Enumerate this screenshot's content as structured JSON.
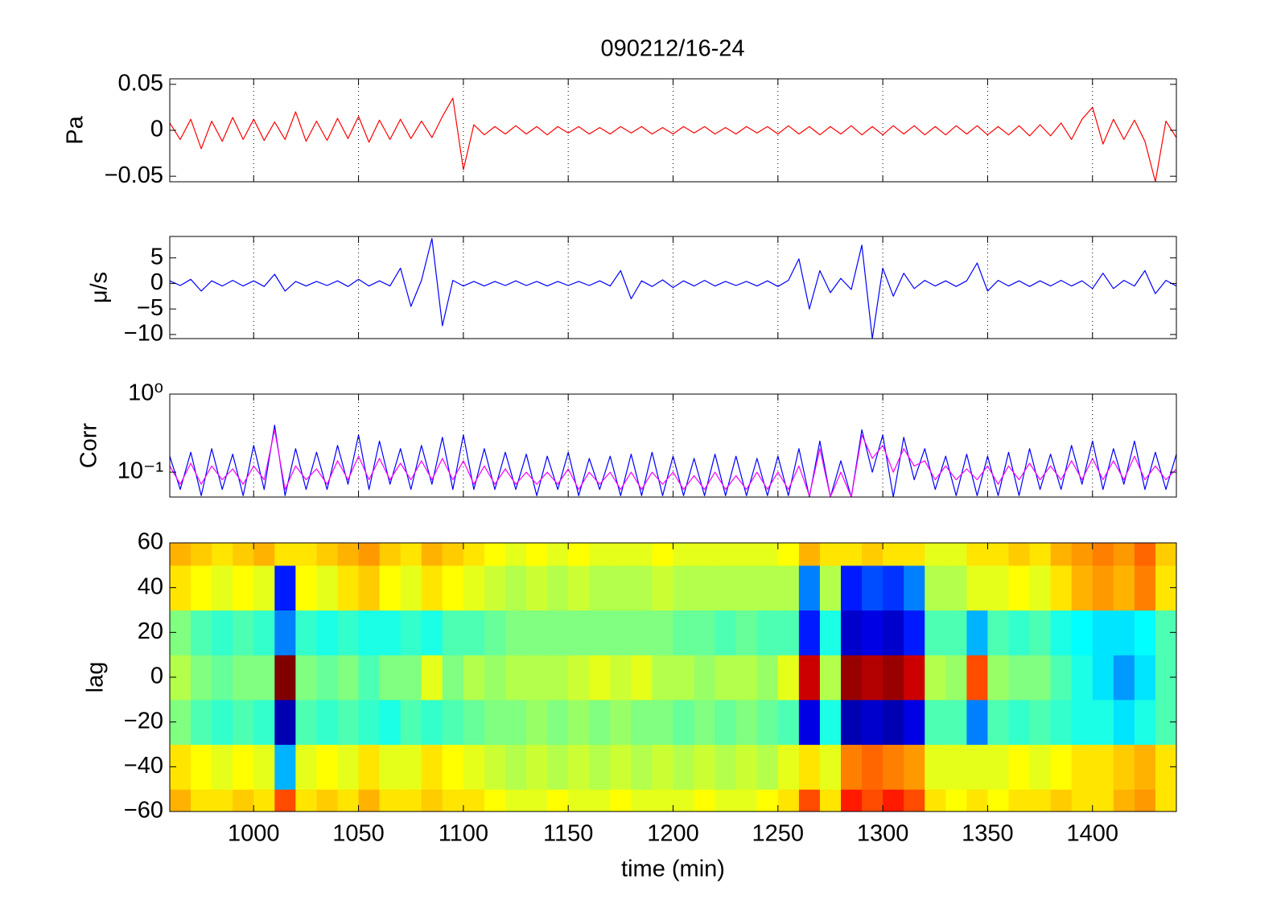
{
  "chart_data": [
    {
      "type": "line",
      "title": "090212/16-24",
      "ylabel": "Pa",
      "color": "#ff0000",
      "grid": true,
      "xlim": [
        960,
        1440
      ],
      "xticks": [
        1000,
        1050,
        1100,
        1150,
        1200,
        1250,
        1300,
        1350,
        1400
      ],
      "ylim": [
        -0.056,
        0.056
      ],
      "yticks": [
        {
          "value": -0.05,
          "label": "−0.05"
        },
        0,
        0.05
      ],
      "x": [
        960,
        965,
        970,
        975,
        980,
        985,
        990,
        995,
        1000,
        1005,
        1010,
        1015,
        1020,
        1025,
        1030,
        1035,
        1040,
        1045,
        1050,
        1055,
        1060,
        1065,
        1070,
        1075,
        1080,
        1085,
        1090,
        1095,
        1100,
        1105,
        1110,
        1115,
        1120,
        1125,
        1130,
        1135,
        1140,
        1145,
        1150,
        1155,
        1160,
        1165,
        1170,
        1175,
        1180,
        1185,
        1190,
        1195,
        1200,
        1205,
        1210,
        1215,
        1220,
        1225,
        1230,
        1235,
        1240,
        1245,
        1250,
        1255,
        1260,
        1265,
        1270,
        1275,
        1280,
        1285,
        1290,
        1295,
        1300,
        1305,
        1310,
        1315,
        1320,
        1325,
        1330,
        1335,
        1340,
        1345,
        1350,
        1355,
        1360,
        1365,
        1370,
        1375,
        1380,
        1385,
        1390,
        1395,
        1400,
        1405,
        1410,
        1415,
        1420,
        1425,
        1430,
        1435,
        1440
      ],
      "values": [
        0.008,
        -0.01,
        0.012,
        -0.02,
        0.01,
        -0.012,
        0.014,
        -0.01,
        0.012,
        -0.011,
        0.009,
        -0.01,
        0.02,
        -0.012,
        0.01,
        -0.011,
        0.013,
        -0.009,
        0.015,
        -0.013,
        0.011,
        -0.01,
        0.012,
        -0.009,
        0.01,
        -0.008,
        0.015,
        0.035,
        -0.043,
        0.006,
        -0.005,
        0.004,
        -0.004,
        0.005,
        -0.004,
        0.004,
        -0.005,
        0.004,
        -0.003,
        0.004,
        -0.004,
        0.003,
        -0.004,
        0.004,
        -0.003,
        0.004,
        -0.004,
        0.003,
        -0.004,
        0.004,
        -0.003,
        0.004,
        -0.004,
        0.003,
        -0.004,
        0.004,
        -0.003,
        0.004,
        -0.004,
        0.005,
        -0.004,
        0.004,
        -0.005,
        0.004,
        -0.004,
        0.005,
        -0.005,
        0.004,
        -0.005,
        0.005,
        -0.004,
        0.005,
        -0.005,
        0.004,
        -0.005,
        0.005,
        -0.004,
        0.005,
        -0.005,
        0.004,
        -0.005,
        0.005,
        -0.006,
        0.006,
        -0.006,
        0.008,
        -0.01,
        0.012,
        0.025,
        -0.015,
        0.012,
        -0.01,
        0.011,
        -0.012,
        -0.056,
        0.01,
        -0.008
      ]
    },
    {
      "type": "line",
      "ylabel": "μ/s",
      "color": "#0000ff",
      "grid": true,
      "xlim": [
        960,
        1440
      ],
      "xticks": [
        1000,
        1050,
        1100,
        1150,
        1200,
        1250,
        1300,
        1350,
        1400
      ],
      "ylim": [
        -10.8,
        9.2
      ],
      "yticks": [
        {
          "value": -10,
          "label": "−10"
        },
        {
          "value": -5,
          "label": "−5"
        },
        0,
        5
      ],
      "x": [
        960,
        965,
        970,
        975,
        980,
        985,
        990,
        995,
        1000,
        1005,
        1010,
        1015,
        1020,
        1025,
        1030,
        1035,
        1040,
        1045,
        1050,
        1055,
        1060,
        1065,
        1070,
        1075,
        1080,
        1085,
        1090,
        1095,
        1100,
        1105,
        1110,
        1115,
        1120,
        1125,
        1130,
        1135,
        1140,
        1145,
        1150,
        1155,
        1160,
        1165,
        1170,
        1175,
        1180,
        1185,
        1190,
        1195,
        1200,
        1205,
        1210,
        1215,
        1220,
        1225,
        1230,
        1235,
        1240,
        1245,
        1250,
        1255,
        1260,
        1265,
        1270,
        1275,
        1280,
        1285,
        1290,
        1295,
        1300,
        1305,
        1310,
        1315,
        1320,
        1325,
        1330,
        1335,
        1340,
        1345,
        1350,
        1355,
        1360,
        1365,
        1370,
        1375,
        1380,
        1385,
        1390,
        1395,
        1400,
        1405,
        1410,
        1415,
        1420,
        1425,
        1430,
        1435,
        1440
      ],
      "values": [
        0.5,
        -0.4,
        0.8,
        -1.5,
        0.5,
        -0.5,
        0.6,
        -0.5,
        0.5,
        -0.6,
        1.8,
        -1.5,
        0.4,
        -0.5,
        0.4,
        -0.4,
        0.5,
        -0.6,
        0.8,
        -0.5,
        0.5,
        -0.5,
        3,
        -4.5,
        0.6,
        8.8,
        -8.3,
        0.6,
        -0.5,
        0.4,
        -0.5,
        0.4,
        -0.4,
        0.5,
        -0.4,
        0.4,
        -0.5,
        0.4,
        -0.4,
        0.4,
        -0.4,
        0.5,
        -0.5,
        2.5,
        -3,
        0.5,
        -0.6,
        0.7,
        -0.8,
        0.5,
        -0.5,
        0.6,
        -0.5,
        0.4,
        -0.4,
        0.4,
        -0.5,
        0.5,
        -0.6,
        0.6,
        4.8,
        -5,
        2.5,
        -1.8,
        1,
        -1.2,
        7.5,
        -10.8,
        3,
        -2.5,
        2,
        -1,
        0.6,
        -0.5,
        0.5,
        -0.6,
        0.5,
        4,
        -1.5,
        0.6,
        -0.5,
        0.5,
        -0.6,
        0.5,
        -0.5,
        0.6,
        -0.5,
        0.5,
        -1,
        2,
        -1,
        0.6,
        -0.5,
        2.5,
        -2,
        0.6,
        -0.5
      ]
    },
    {
      "type": "line",
      "ylabel": "Corr",
      "yscale": "log",
      "grid": true,
      "xlim": [
        960,
        1440
      ],
      "xticks": [
        1000,
        1050,
        1100,
        1150,
        1200,
        1250,
        1300,
        1350,
        1400
      ],
      "ylim": [
        0.048,
        1
      ],
      "yticks": [
        {
          "value": 0.1,
          "label": "10⁻¹"
        },
        {
          "value": 1,
          "label": "10⁰"
        }
      ],
      "x": [
        960,
        965,
        970,
        975,
        980,
        985,
        990,
        995,
        1000,
        1005,
        1010,
        1015,
        1020,
        1025,
        1030,
        1035,
        1040,
        1045,
        1050,
        1055,
        1060,
        1065,
        1070,
        1075,
        1080,
        1085,
        1090,
        1095,
        1100,
        1105,
        1110,
        1115,
        1120,
        1125,
        1130,
        1135,
        1140,
        1145,
        1150,
        1155,
        1160,
        1165,
        1170,
        1175,
        1180,
        1185,
        1190,
        1195,
        1200,
        1205,
        1210,
        1215,
        1220,
        1225,
        1230,
        1235,
        1240,
        1245,
        1250,
        1255,
        1260,
        1265,
        1270,
        1275,
        1280,
        1285,
        1290,
        1295,
        1300,
        1305,
        1310,
        1315,
        1320,
        1325,
        1330,
        1335,
        1340,
        1345,
        1350,
        1355,
        1360,
        1365,
        1370,
        1375,
        1380,
        1385,
        1390,
        1395,
        1400,
        1405,
        1410,
        1415,
        1420,
        1425,
        1430,
        1435,
        1440
      ],
      "series": [
        {
          "color": "#0000ff",
          "values": [
            0.16,
            0.06,
            0.18,
            0.05,
            0.2,
            0.06,
            0.17,
            0.05,
            0.22,
            0.06,
            0.4,
            0.05,
            0.2,
            0.06,
            0.18,
            0.06,
            0.22,
            0.07,
            0.3,
            0.06,
            0.25,
            0.07,
            0.2,
            0.06,
            0.22,
            0.07,
            0.28,
            0.06,
            0.3,
            0.06,
            0.2,
            0.06,
            0.18,
            0.06,
            0.17,
            0.05,
            0.16,
            0.06,
            0.18,
            0.05,
            0.15,
            0.06,
            0.16,
            0.05,
            0.17,
            0.05,
            0.18,
            0.05,
            0.16,
            0.05,
            0.15,
            0.05,
            0.17,
            0.05,
            0.16,
            0.05,
            0.15,
            0.05,
            0.16,
            0.05,
            0.2,
            0.048,
            0.25,
            0.048,
            0.14,
            0.048,
            0.35,
            0.1,
            0.3,
            0.048,
            0.28,
            0.08,
            0.2,
            0.06,
            0.16,
            0.05,
            0.17,
            0.05,
            0.16,
            0.05,
            0.18,
            0.05,
            0.2,
            0.06,
            0.17,
            0.06,
            0.22,
            0.07,
            0.25,
            0.06,
            0.2,
            0.07,
            0.25,
            0.06,
            0.18,
            0.06,
            0.17
          ]
        },
        {
          "color": "#ff00ff",
          "values": [
            0.12,
            0.07,
            0.13,
            0.07,
            0.12,
            0.08,
            0.11,
            0.07,
            0.12,
            0.08,
            0.35,
            0.06,
            0.12,
            0.08,
            0.11,
            0.07,
            0.14,
            0.08,
            0.16,
            0.08,
            0.15,
            0.08,
            0.13,
            0.08,
            0.14,
            0.08,
            0.15,
            0.08,
            0.14,
            0.07,
            0.12,
            0.07,
            0.11,
            0.07,
            0.1,
            0.07,
            0.1,
            0.07,
            0.11,
            0.06,
            0.1,
            0.07,
            0.1,
            0.06,
            0.1,
            0.06,
            0.1,
            0.07,
            0.1,
            0.06,
            0.09,
            0.06,
            0.1,
            0.06,
            0.09,
            0.06,
            0.1,
            0.06,
            0.1,
            0.06,
            0.12,
            0.05,
            0.2,
            0.048,
            0.1,
            0.048,
            0.3,
            0.15,
            0.22,
            0.1,
            0.2,
            0.12,
            0.14,
            0.08,
            0.12,
            0.08,
            0.11,
            0.08,
            0.12,
            0.07,
            0.12,
            0.08,
            0.13,
            0.08,
            0.12,
            0.08,
            0.14,
            0.08,
            0.15,
            0.08,
            0.14,
            0.08,
            0.16,
            0.08,
            0.12,
            0.08,
            0.11
          ]
        }
      ]
    },
    {
      "type": "heatmap",
      "ylabel": "lag",
      "xlabel": "time (min)",
      "clim": [
        -1,
        1
      ],
      "xlim": [
        960,
        1440
      ],
      "xticks": [
        1000,
        1050,
        1100,
        1150,
        1200,
        1250,
        1300,
        1350,
        1400
      ],
      "ylim": [
        -60,
        60
      ],
      "yticks": [
        {
          "value": -60,
          "label": "−60"
        },
        {
          "value": -40,
          "label": "−40"
        },
        {
          "value": -20,
          "label": "−20"
        },
        0,
        20,
        40,
        60
      ],
      "x": [
        965,
        975,
        985,
        995,
        1005,
        1015,
        1025,
        1035,
        1045,
        1055,
        1065,
        1075,
        1085,
        1095,
        1105,
        1115,
        1125,
        1135,
        1145,
        1155,
        1165,
        1175,
        1185,
        1195,
        1205,
        1215,
        1225,
        1235,
        1245,
        1255,
        1265,
        1275,
        1285,
        1295,
        1305,
        1315,
        1325,
        1335,
        1345,
        1355,
        1365,
        1375,
        1385,
        1395,
        1405,
        1415,
        1425,
        1435
      ],
      "y": [
        -60,
        -40,
        -20,
        0,
        20,
        40,
        60
      ],
      "z": [
        [
          0.4,
          0.3,
          0.3,
          0.35,
          0.3,
          0.6,
          0.3,
          0.35,
          0.3,
          0.4,
          0.3,
          0.3,
          0.35,
          0.3,
          0.3,
          0.25,
          0.2,
          0.2,
          0.25,
          0.2,
          0.2,
          0.25,
          0.2,
          0.2,
          0.2,
          0.25,
          0.2,
          0.2,
          0.25,
          0.3,
          0.6,
          0.3,
          0.7,
          0.6,
          0.7,
          0.6,
          0.3,
          0.25,
          0.3,
          0.25,
          0.3,
          0.3,
          0.35,
          0.3,
          0.3,
          0.4,
          0.45,
          0.3
        ],
        [
          0.3,
          0.25,
          0.2,
          0.25,
          0.2,
          -0.4,
          0.2,
          0.25,
          0.2,
          0.3,
          0.2,
          0.2,
          0.3,
          0.25,
          0.2,
          0.15,
          0.1,
          0.15,
          0.1,
          0.15,
          0.1,
          0.15,
          0.1,
          0.15,
          0.1,
          0.15,
          0.1,
          0.15,
          0.1,
          0.2,
          0.3,
          0.2,
          0.5,
          0.55,
          0.5,
          0.45,
          0.2,
          0.2,
          0.2,
          0.2,
          0.25,
          0.2,
          0.25,
          0.3,
          0.3,
          0.35,
          0.4,
          0.3
        ],
        [
          0,
          -0.1,
          -0.15,
          -0.1,
          -0.15,
          -0.9,
          -0.1,
          -0.15,
          -0.1,
          -0.15,
          -0.2,
          -0.1,
          -0.15,
          -0.1,
          -0.05,
          0,
          0,
          0.05,
          0,
          0.05,
          0,
          0.05,
          0,
          0,
          -0.05,
          0,
          -0.05,
          0,
          -0.05,
          -0.1,
          -0.8,
          -0.2,
          -0.9,
          -0.85,
          -0.9,
          -0.8,
          -0.1,
          -0.1,
          -0.5,
          -0.1,
          -0.15,
          -0.1,
          -0.15,
          -0.2,
          -0.2,
          -0.3,
          -0.2,
          -0.1
        ],
        [
          0.1,
          0,
          -0.05,
          0,
          0,
          1,
          0,
          -0.05,
          0,
          -0.1,
          0,
          0,
          0.2,
          0,
          0.1,
          0.05,
          0.1,
          0.1,
          0.1,
          0.15,
          0.2,
          0.15,
          0.2,
          0.1,
          0.1,
          0.05,
          0.1,
          0.1,
          0.05,
          0.2,
          0.85,
          0.1,
          0.95,
          0.9,
          0.95,
          0.85,
          0.1,
          0.05,
          0.6,
          0.05,
          0,
          0,
          -0.1,
          -0.2,
          -0.3,
          -0.45,
          -0.3,
          -0.1
        ],
        [
          0,
          -0.1,
          -0.15,
          -0.1,
          -0.15,
          -0.5,
          -0.15,
          -0.2,
          -0.15,
          -0.2,
          -0.2,
          -0.15,
          -0.2,
          -0.1,
          -0.1,
          -0.05,
          0,
          0,
          0,
          0,
          0,
          0,
          0,
          0,
          -0.05,
          -0.05,
          -0.1,
          -0.05,
          -0.1,
          -0.1,
          -0.7,
          -0.2,
          -0.85,
          -0.8,
          -0.85,
          -0.7,
          -0.1,
          -0.1,
          -0.4,
          -0.1,
          -0.15,
          -0.1,
          -0.2,
          -0.25,
          -0.3,
          -0.3,
          -0.25,
          -0.1
        ],
        [
          0.3,
          0.25,
          0.2,
          0.25,
          0.2,
          -0.7,
          0.25,
          0.2,
          0.3,
          0.35,
          0.25,
          0.2,
          0.3,
          0.25,
          0.2,
          0.15,
          0.1,
          0.15,
          0.1,
          0.15,
          0.1,
          0.1,
          0.1,
          0.15,
          0.1,
          0.1,
          0.1,
          0.1,
          0.1,
          0.1,
          -0.5,
          0.1,
          -0.7,
          -0.6,
          -0.65,
          -0.5,
          0.1,
          0.1,
          0.2,
          0.2,
          0.25,
          0.2,
          0.3,
          0.4,
          0.45,
          0.4,
          0.5,
          0.3
        ],
        [
          0.4,
          0.35,
          0.3,
          0.35,
          0.4,
          0.3,
          0.3,
          0.35,
          0.4,
          0.45,
          0.35,
          0.3,
          0.4,
          0.35,
          0.3,
          0.25,
          0.2,
          0.25,
          0.2,
          0.25,
          0.2,
          0.2,
          0.2,
          0.25,
          0.2,
          0.2,
          0.2,
          0.2,
          0.2,
          0.25,
          0.4,
          0.3,
          0.3,
          0.35,
          0.3,
          0.3,
          0.2,
          0.2,
          0.3,
          0.3,
          0.35,
          0.3,
          0.4,
          0.45,
          0.5,
          0.45,
          0.55,
          0.35
        ]
      ]
    }
  ]
}
